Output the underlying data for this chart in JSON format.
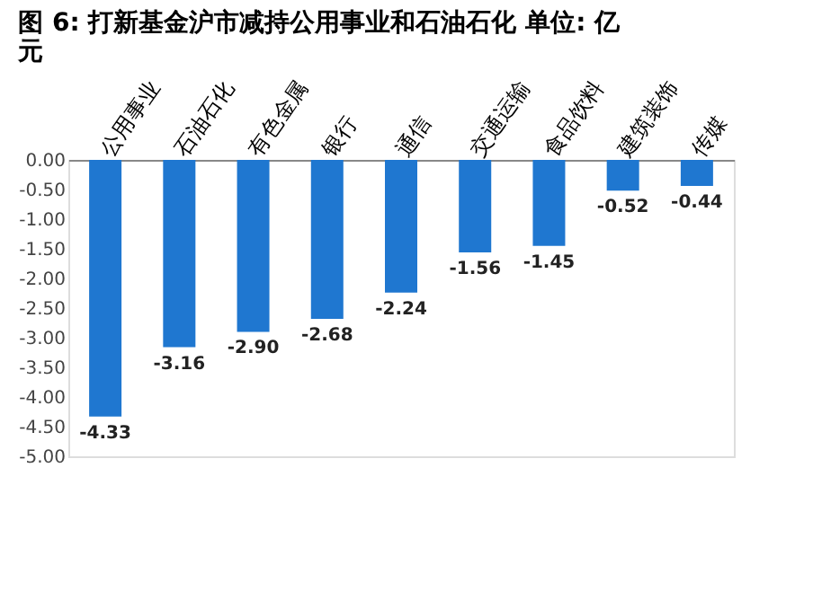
{
  "chart_data": {
    "type": "bar",
    "title": "图 6: 打新基金沪市减持公用事业和石油石化 单位: 亿元",
    "categories": [
      "公用事业",
      "石油石化",
      "有色金属",
      "银行",
      "通信",
      "交通运输",
      "食品饮料",
      "建筑装饰",
      "传媒"
    ],
    "values": [
      -4.33,
      -3.16,
      -2.9,
      -2.68,
      -2.24,
      -1.56,
      -1.45,
      -0.52,
      -0.44
    ],
    "color": "#1f77d0",
    "ylim": [
      -5.0,
      0.0
    ],
    "yticks": [
      {
        "value": 0,
        "label": "0.00"
      },
      {
        "value": -0.5,
        "label": "-0.50"
      },
      {
        "value": -1,
        "label": "-1.00"
      },
      {
        "value": -1.5,
        "label": "-1.50"
      },
      {
        "value": -2,
        "label": "-2.00"
      },
      {
        "value": -2.5,
        "label": "-2.50"
      },
      {
        "value": -3,
        "label": "-3.00"
      },
      {
        "value": -3.5,
        "label": "-3.50"
      },
      {
        "value": -4,
        "label": "-4.00"
      },
      {
        "value": -4.5,
        "label": "-4.50"
      },
      {
        "value": -5,
        "label": "-5.00"
      }
    ],
    "value_labels": [
      "-4.33",
      "-3.16",
      "-2.90",
      "-2.68",
      "-2.24",
      "-1.56",
      "-1.45",
      "-0.52",
      "-0.44"
    ],
    "grid": false
  }
}
